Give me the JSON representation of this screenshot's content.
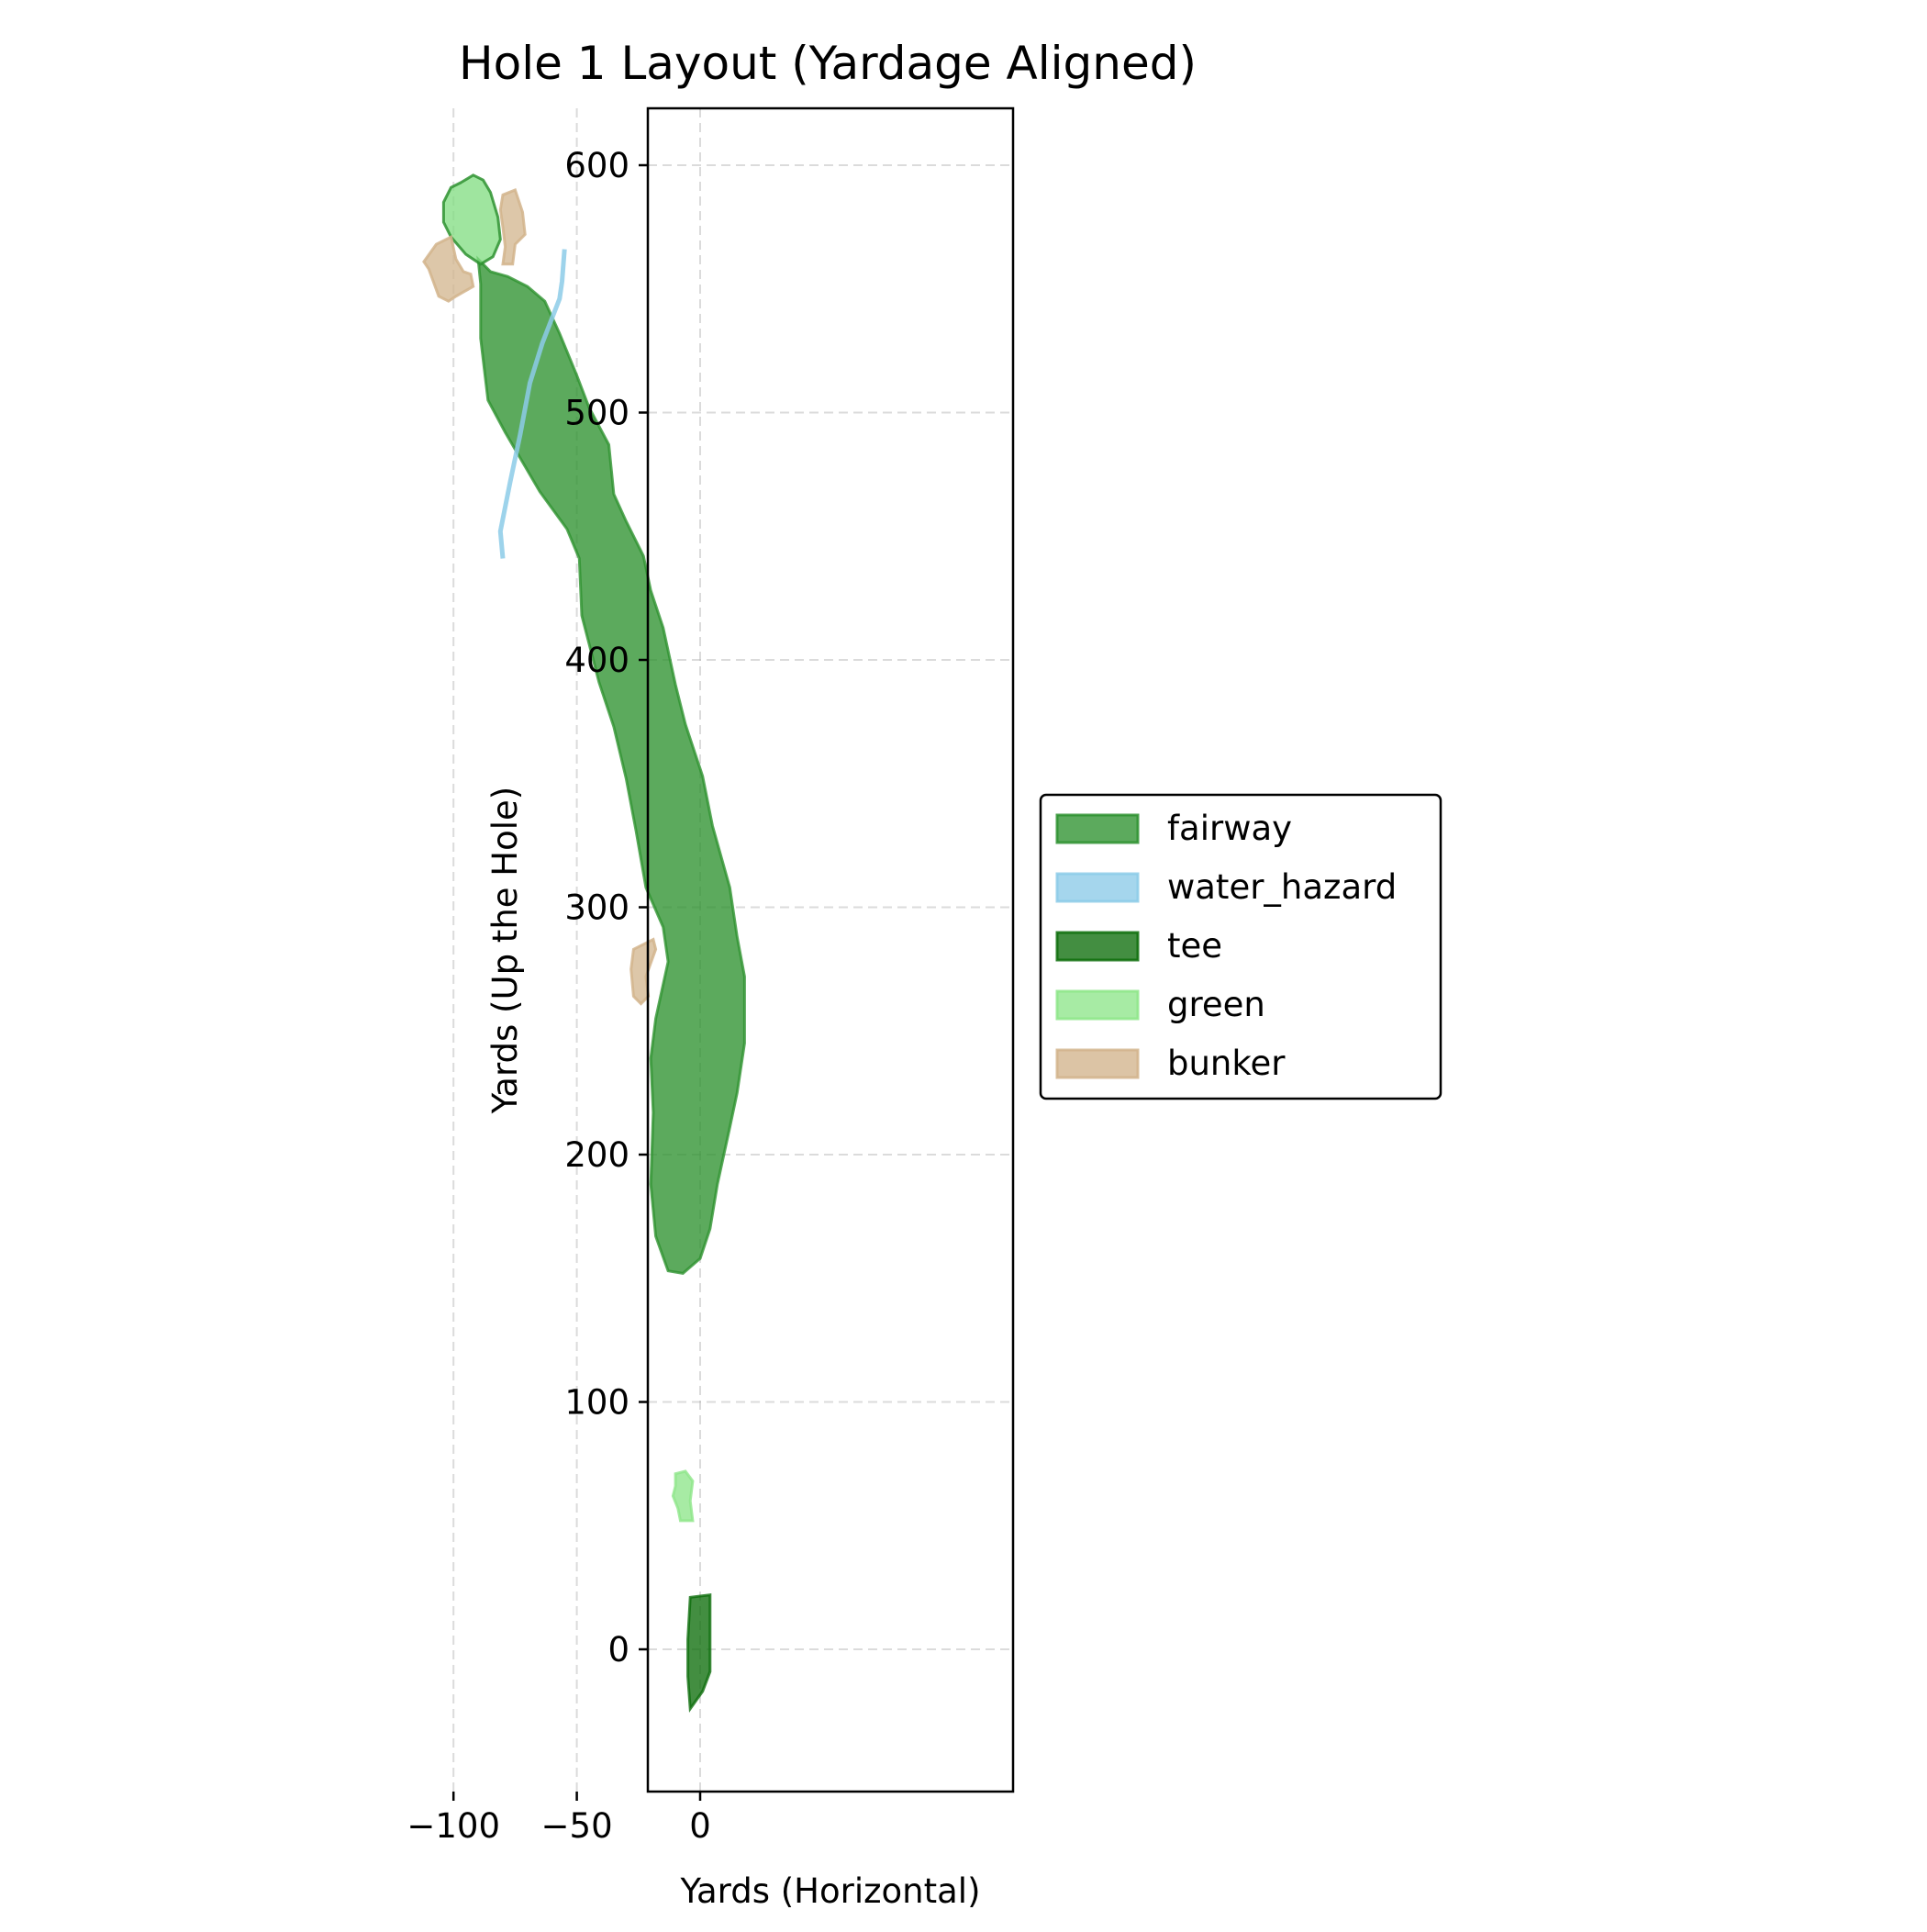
{
  "chart_data": {
    "type": "area",
    "title": "Hole 1 Layout (Yardage Aligned)",
    "xlabel": "Yards (Horizontal)",
    "ylabel": "Yards (Up the Hole)",
    "xlim": [
      -123,
      25
    ],
    "ylim": [
      -54,
      626
    ],
    "xticks": [
      -100,
      -50,
      0
    ],
    "xtick_labels": [
      "−100",
      "−50",
      "0"
    ],
    "yticks": [
      0,
      100,
      200,
      300,
      400,
      500,
      600
    ],
    "ytick_labels": [
      "0",
      "100",
      "200",
      "300",
      "400",
      "500",
      "600"
    ],
    "grid": true,
    "legend_position": "center-left outside plot",
    "series": [
      {
        "name": "fairway",
        "kind": "polygon",
        "fill": "#2e9230",
        "stroke": "#2e9230",
        "points": [
          [
            -90,
            562
          ],
          [
            -85,
            557
          ],
          [
            -78,
            555
          ],
          [
            -70,
            551
          ],
          [
            -63,
            545
          ],
          [
            -57,
            532
          ],
          [
            -50,
            515
          ],
          [
            -45,
            502
          ],
          [
            -37,
            487
          ],
          [
            -35,
            467
          ],
          [
            -30,
            456
          ],
          [
            -23,
            442
          ],
          [
            -20,
            428
          ],
          [
            -15,
            413
          ],
          [
            -10,
            390
          ],
          [
            -6,
            374
          ],
          [
            1,
            353
          ],
          [
            5,
            333
          ],
          [
            12,
            308
          ],
          [
            15,
            288
          ],
          [
            18,
            272
          ],
          [
            18,
            245
          ],
          [
            15,
            225
          ],
          [
            12,
            211
          ],
          [
            7,
            188
          ],
          [
            4,
            170
          ],
          [
            0,
            158
          ],
          [
            -7,
            152
          ],
          [
            -13,
            153
          ],
          [
            -18,
            167
          ],
          [
            -20,
            188
          ],
          [
            -19,
            217
          ],
          [
            -20,
            239
          ],
          [
            -18,
            255
          ],
          [
            -13,
            278
          ],
          [
            -15,
            292
          ],
          [
            -22,
            308
          ],
          [
            -26,
            331
          ],
          [
            -30,
            352
          ],
          [
            -35,
            373
          ],
          [
            -41,
            391
          ],
          [
            -48,
            418
          ],
          [
            -49,
            441
          ],
          [
            -54,
            453
          ],
          [
            -65,
            468
          ],
          [
            -79,
            492
          ],
          [
            -86,
            505
          ],
          [
            -89,
            530
          ],
          [
            -89,
            552
          ]
        ]
      },
      {
        "name": "water_hazard",
        "kind": "line",
        "stroke": "#8ccbe8",
        "points": [
          [
            -80,
            441
          ],
          [
            -81,
            452
          ],
          [
            -77,
            472
          ],
          [
            -73,
            491
          ],
          [
            -69,
            512
          ],
          [
            -64,
            528
          ],
          [
            -57,
            546
          ],
          [
            -56,
            553
          ],
          [
            -55,
            566
          ]
        ]
      },
      {
        "name": "tee",
        "kind": "polygon",
        "fill": "#0e6e0c",
        "stroke": "#0e6e0c",
        "points": [
          [
            -4,
            21
          ],
          [
            4,
            22
          ],
          [
            4,
            8
          ],
          [
            4,
            -9
          ],
          [
            1,
            -17
          ],
          [
            -4,
            -24
          ],
          [
            -5,
            -11
          ],
          [
            -5,
            4
          ]
        ]
      },
      {
        "name": "green",
        "kind": "polygon",
        "fill": "#8ee68a",
        "stroke": "#8ee68a",
        "points": [
          [
            -10,
            71
          ],
          [
            -6,
            72
          ],
          [
            -3,
            68
          ],
          [
            -4,
            60
          ],
          [
            -3,
            52
          ],
          [
            -8,
            52
          ],
          [
            -9,
            57
          ],
          [
            -11,
            62
          ],
          [
            -10,
            66
          ]
        ],
        "extra_polygons": [
          {
            "fill": "#7fdc7f",
            "stroke": "#2e9230",
            "points": [
              [
                -97,
                593
              ],
              [
                -92,
                596
              ],
              [
                -88,
                594
              ],
              [
                -85,
                589
              ],
              [
                -82,
                579
              ],
              [
                -81,
                570
              ],
              [
                -84,
                563
              ],
              [
                -89,
                560
              ],
              [
                -95,
                564
              ],
              [
                -101,
                571
              ],
              [
                -104,
                577
              ],
              [
                -104,
                585
              ],
              [
                -101,
                591
              ]
            ]
          }
        ]
      },
      {
        "name": "bunker",
        "kind": "polygon",
        "fill": "#d2b48c",
        "stroke": "#d2b48c",
        "extra_polygons": [
          {
            "points": [
              [
                -80,
                588
              ],
              [
                -75,
                590
              ],
              [
                -72,
                581
              ],
              [
                -71,
                572
              ],
              [
                -75,
                568
              ],
              [
                -76,
                560
              ],
              [
                -80,
                560
              ],
              [
                -79,
                567
              ],
              [
                -80,
                575
              ],
              [
                -81,
                582
              ]
            ]
          },
          {
            "points": [
              [
                -112,
                561
              ],
              [
                -107,
                568
              ],
              [
                -101,
                571
              ],
              [
                -99,
                562
              ],
              [
                -96,
                557
              ],
              [
                -93,
                556
              ],
              [
                -92,
                551
              ],
              [
                -99,
                547
              ],
              [
                -102,
                545
              ],
              [
                -106,
                547
              ],
              [
                -110,
                558
              ]
            ]
          },
          {
            "points": [
              [
                -27,
                283
              ],
              [
                -19,
                287
              ],
              [
                -18,
                283
              ],
              [
                -22,
                272
              ],
              [
                -21,
                264
              ],
              [
                -24,
                261
              ],
              [
                -27,
                264
              ],
              [
                -28,
                275
              ]
            ]
          }
        ]
      }
    ]
  }
}
